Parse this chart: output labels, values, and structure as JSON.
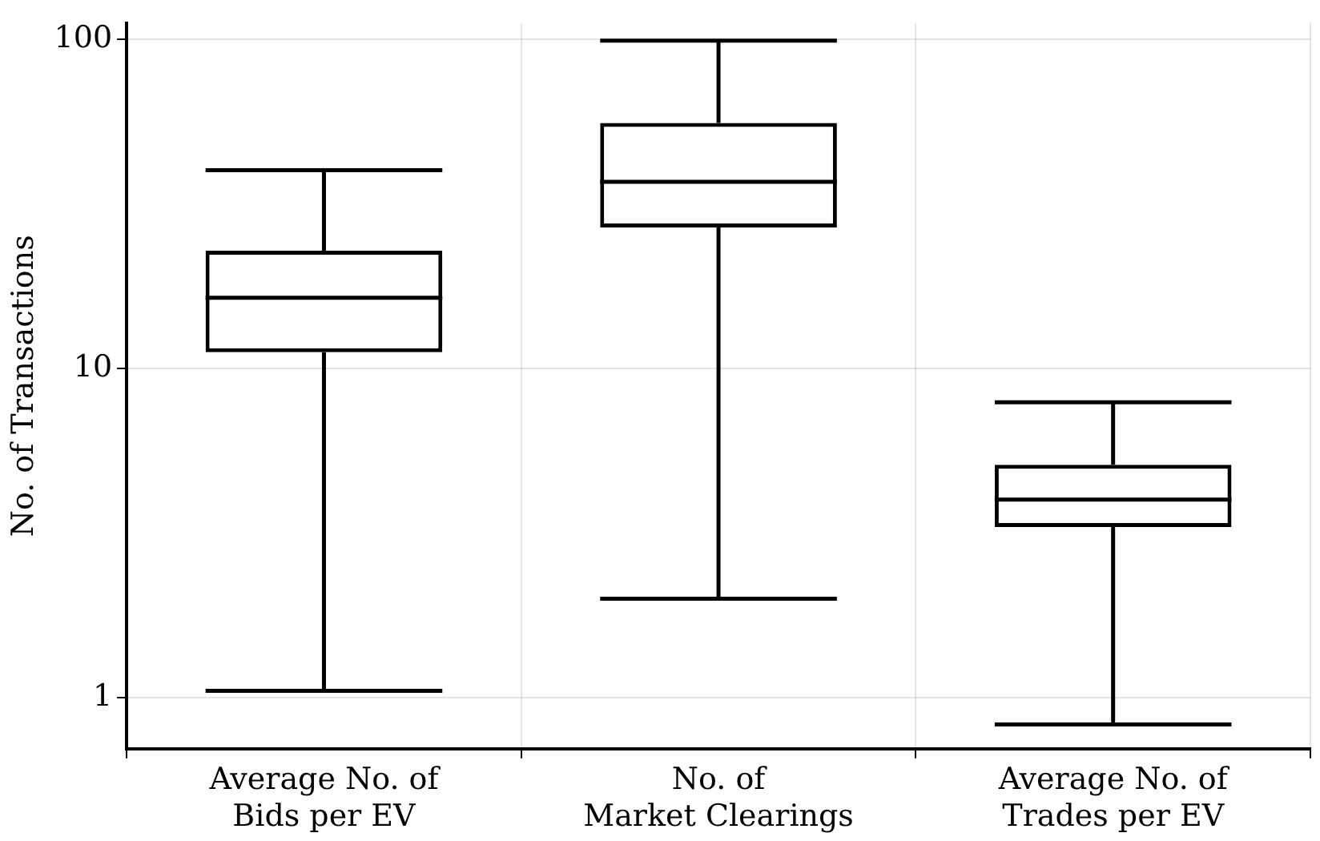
{
  "chart_data": {
    "type": "box",
    "ylabel": "No. of Transactions",
    "categories": [
      "Average No. of\nBids per EV",
      "No. of\nMarket Clearings",
      "Average No. of\nTrades per EV"
    ],
    "boxes": [
      {
        "low": 1.05,
        "q1": 11.2,
        "median": 16.4,
        "q3": 22.8,
        "high": 40
      },
      {
        "low": 2.0,
        "q1": 26.8,
        "median": 36.9,
        "q3": 55.7,
        "high": 99
      },
      {
        "low": 0.83,
        "q1": 3.3,
        "median": 4.0,
        "q3": 5.1,
        "high": 7.9
      }
    ],
    "color": "#000000",
    "log": true,
    "ylim": [
      0.73,
      112
    ],
    "yticks": [
      1,
      10,
      100
    ],
    "grid": true,
    "legend": false
  }
}
